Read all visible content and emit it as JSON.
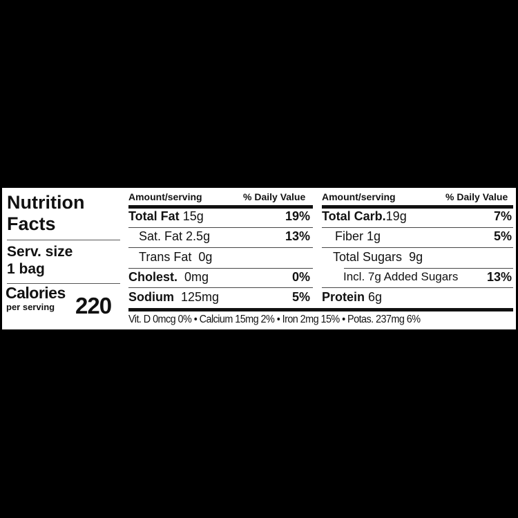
{
  "title": [
    "Nutrition",
    "Facts"
  ],
  "serving": {
    "label": "Serv. size",
    "value": "1 bag"
  },
  "calories": {
    "label": "Calories",
    "sub": "per serving",
    "value": "220"
  },
  "columns": {
    "amount_header": "Amount/serving",
    "dv_header": "% Daily Value"
  },
  "left": [
    {
      "name": "Total Fat",
      "amount": "15g",
      "dv": "19%"
    },
    {
      "name": "Sat. Fat",
      "amount": "2.5g",
      "dv": "13%"
    },
    {
      "name": "Trans Fat",
      "amount": "0g",
      "dv": ""
    },
    {
      "name": "Cholest.",
      "amount": "0mg",
      "dv": "0%"
    },
    {
      "name": "Sodium",
      "amount": "125mg",
      "dv": "5%"
    }
  ],
  "right": [
    {
      "name": "Total Carb.",
      "amount": "19g",
      "dv": "7%"
    },
    {
      "name": "Fiber",
      "amount": "1g",
      "dv": "5%"
    },
    {
      "name": "Total Sugars",
      "amount": "9g",
      "dv": ""
    },
    {
      "name": "Incl. 7g Added Sugars",
      "amount": "",
      "dv": "13%"
    },
    {
      "name": "Protein",
      "amount": "6g",
      "dv": ""
    }
  ],
  "footer": "Vit. D 0mcg 0% • Calcium 15mg 2% • Iron 2mg 15% • Potas. 237mg 6%"
}
